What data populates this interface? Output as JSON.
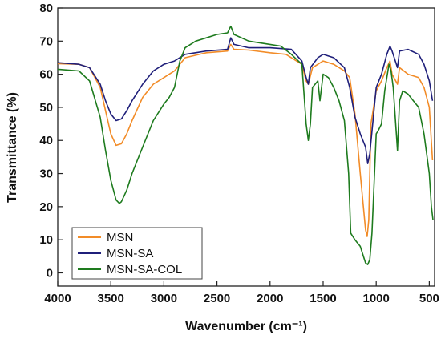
{
  "chart_data": {
    "type": "line",
    "xlabel": "Wavenumber (cm⁻¹)",
    "ylabel": "Transmittance (%)",
    "xlim": [
      4000,
      450
    ],
    "ylim": [
      -4,
      80
    ],
    "x_ticks": [
      4000,
      3500,
      3000,
      2500,
      2000,
      1500,
      1000,
      500
    ],
    "y_ticks": [
      0,
      10,
      20,
      30,
      40,
      50,
      60,
      70,
      80
    ],
    "legend_position": "bottom-left",
    "grid": false,
    "series": [
      {
        "name": "MSN",
        "color": "#f28c28",
        "points": [
          [
            4000,
            63.2
          ],
          [
            3800,
            63
          ],
          [
            3700,
            62
          ],
          [
            3600,
            56
          ],
          [
            3550,
            49
          ],
          [
            3500,
            42
          ],
          [
            3450,
            38.5
          ],
          [
            3400,
            39
          ],
          [
            3350,
            42
          ],
          [
            3300,
            46
          ],
          [
            3200,
            53
          ],
          [
            3100,
            57
          ],
          [
            3000,
            59
          ],
          [
            2950,
            60
          ],
          [
            2900,
            61
          ],
          [
            2800,
            65
          ],
          [
            2600,
            66.5
          ],
          [
            2400,
            67
          ],
          [
            2370,
            69
          ],
          [
            2340,
            67.5
          ],
          [
            2200,
            67.3
          ],
          [
            2000,
            66.5
          ],
          [
            1850,
            66
          ],
          [
            1700,
            63
          ],
          [
            1660,
            58
          ],
          [
            1640,
            57
          ],
          [
            1600,
            62
          ],
          [
            1500,
            64
          ],
          [
            1400,
            63
          ],
          [
            1300,
            61
          ],
          [
            1250,
            59
          ],
          [
            1200,
            48
          ],
          [
            1150,
            30
          ],
          [
            1100,
            13
          ],
          [
            1085,
            11
          ],
          [
            1070,
            16
          ],
          [
            1050,
            45
          ],
          [
            1000,
            55
          ],
          [
            950,
            58
          ],
          [
            900,
            62
          ],
          [
            870,
            64
          ],
          [
            850,
            60
          ],
          [
            800,
            57
          ],
          [
            780,
            62
          ],
          [
            700,
            60
          ],
          [
            600,
            59
          ],
          [
            550,
            56
          ],
          [
            500,
            50
          ],
          [
            470,
            34
          ]
        ]
      },
      {
        "name": "MSN-SA",
        "color": "#1f1f7a",
        "points": [
          [
            4000,
            63.5
          ],
          [
            3800,
            63
          ],
          [
            3700,
            62
          ],
          [
            3600,
            57
          ],
          [
            3550,
            52
          ],
          [
            3500,
            48
          ],
          [
            3450,
            46
          ],
          [
            3400,
            46.5
          ],
          [
            3350,
            49
          ],
          [
            3300,
            52
          ],
          [
            3200,
            57
          ],
          [
            3100,
            61
          ],
          [
            3000,
            63
          ],
          [
            2900,
            64
          ],
          [
            2800,
            66
          ],
          [
            2600,
            67
          ],
          [
            2400,
            67.5
          ],
          [
            2370,
            71
          ],
          [
            2340,
            69
          ],
          [
            2200,
            68
          ],
          [
            2000,
            68
          ],
          [
            1800,
            67.5
          ],
          [
            1700,
            64
          ],
          [
            1660,
            59
          ],
          [
            1640,
            57
          ],
          [
            1620,
            62
          ],
          [
            1550,
            65
          ],
          [
            1500,
            66
          ],
          [
            1400,
            65
          ],
          [
            1300,
            62
          ],
          [
            1250,
            56
          ],
          [
            1200,
            47
          ],
          [
            1150,
            42
          ],
          [
            1100,
            38
          ],
          [
            1080,
            33
          ],
          [
            1060,
            36
          ],
          [
            1000,
            56
          ],
          [
            950,
            60
          ],
          [
            900,
            66
          ],
          [
            870,
            68.5
          ],
          [
            850,
            67
          ],
          [
            800,
            62
          ],
          [
            780,
            67
          ],
          [
            700,
            67.5
          ],
          [
            600,
            66
          ],
          [
            550,
            63
          ],
          [
            500,
            58
          ],
          [
            470,
            52
          ]
        ]
      },
      {
        "name": "MSN-SA-COL",
        "color": "#1e7b1e",
        "points": [
          [
            4000,
            61.5
          ],
          [
            3800,
            61
          ],
          [
            3700,
            58
          ],
          [
            3600,
            47
          ],
          [
            3550,
            37
          ],
          [
            3500,
            28
          ],
          [
            3450,
            22
          ],
          [
            3420,
            21
          ],
          [
            3400,
            21.5
          ],
          [
            3350,
            25
          ],
          [
            3300,
            30
          ],
          [
            3200,
            38
          ],
          [
            3100,
            46
          ],
          [
            3000,
            51
          ],
          [
            2950,
            53
          ],
          [
            2900,
            56
          ],
          [
            2850,
            64
          ],
          [
            2800,
            68
          ],
          [
            2700,
            70
          ],
          [
            2600,
            71
          ],
          [
            2500,
            72
          ],
          [
            2400,
            72.5
          ],
          [
            2370,
            74.5
          ],
          [
            2340,
            72
          ],
          [
            2200,
            70
          ],
          [
            2000,
            69
          ],
          [
            1900,
            68.5
          ],
          [
            1800,
            66
          ],
          [
            1700,
            63
          ],
          [
            1660,
            45
          ],
          [
            1640,
            40
          ],
          [
            1620,
            45
          ],
          [
            1600,
            56
          ],
          [
            1550,
            58
          ],
          [
            1530,
            52
          ],
          [
            1500,
            60
          ],
          [
            1450,
            59
          ],
          [
            1400,
            56
          ],
          [
            1350,
            52
          ],
          [
            1300,
            46
          ],
          [
            1260,
            30
          ],
          [
            1240,
            12
          ],
          [
            1200,
            10
          ],
          [
            1150,
            8
          ],
          [
            1100,
            3
          ],
          [
            1080,
            2.5
          ],
          [
            1060,
            4
          ],
          [
            1040,
            12
          ],
          [
            1000,
            42
          ],
          [
            980,
            43
          ],
          [
            950,
            45
          ],
          [
            920,
            55
          ],
          [
            880,
            63
          ],
          [
            860,
            61
          ],
          [
            840,
            56
          ],
          [
            800,
            37
          ],
          [
            780,
            52
          ],
          [
            750,
            55
          ],
          [
            700,
            54
          ],
          [
            650,
            52
          ],
          [
            600,
            50
          ],
          [
            550,
            42
          ],
          [
            500,
            30
          ],
          [
            480,
            20
          ],
          [
            465,
            16
          ]
        ]
      }
    ]
  },
  "legend": {
    "items": [
      {
        "label": "MSN",
        "color": "#f28c28"
      },
      {
        "label": "MSN-SA",
        "color": "#1f1f7a"
      },
      {
        "label": "MSN-SA-COL",
        "color": "#1e7b1e"
      }
    ]
  }
}
